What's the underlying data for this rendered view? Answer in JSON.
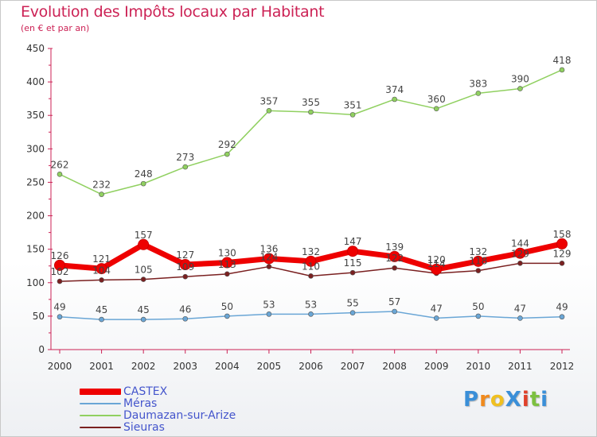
{
  "title": "Evolution des Impôts locaux par Habitant",
  "subtitle": "(en € et par an)",
  "brand": "ProXiti",
  "chart_data": {
    "type": "line",
    "title": "Evolution des Impôts locaux par Habitant",
    "subtitle": "(en € et par an)",
    "xlabel": "",
    "ylabel": "",
    "x": [
      "2000",
      "2001",
      "2002",
      "2003",
      "2004",
      "2005",
      "2006",
      "2007",
      "2008",
      "2009",
      "2010",
      "2011",
      "2012"
    ],
    "ylim": [
      0,
      450
    ],
    "yticks": [
      0,
      50,
      100,
      150,
      200,
      250,
      300,
      350,
      400,
      450
    ],
    "grid": false,
    "legend_position": "bottom-left",
    "series": [
      {
        "name": "CASTEX",
        "color": "#ee0000",
        "emphasis": true,
        "values": [
          126,
          121,
          157,
          127,
          130,
          136,
          132,
          147,
          139,
          120,
          132,
          144,
          158
        ]
      },
      {
        "name": "Méras",
        "color": "#6aa6d6",
        "values": [
          49,
          45,
          45,
          46,
          50,
          53,
          53,
          55,
          57,
          47,
          50,
          47,
          49
        ]
      },
      {
        "name": "Daumazan-sur-Arize",
        "color": "#90d060",
        "values": [
          262,
          232,
          248,
          273,
          292,
          357,
          355,
          351,
          374,
          360,
          383,
          390,
          418
        ]
      },
      {
        "name": "Sieuras",
        "color": "#7a2020",
        "values": [
          102,
          104,
          105,
          109,
          113,
          124,
          110,
          115,
          122,
          114,
          118,
          129,
          129
        ]
      }
    ]
  }
}
